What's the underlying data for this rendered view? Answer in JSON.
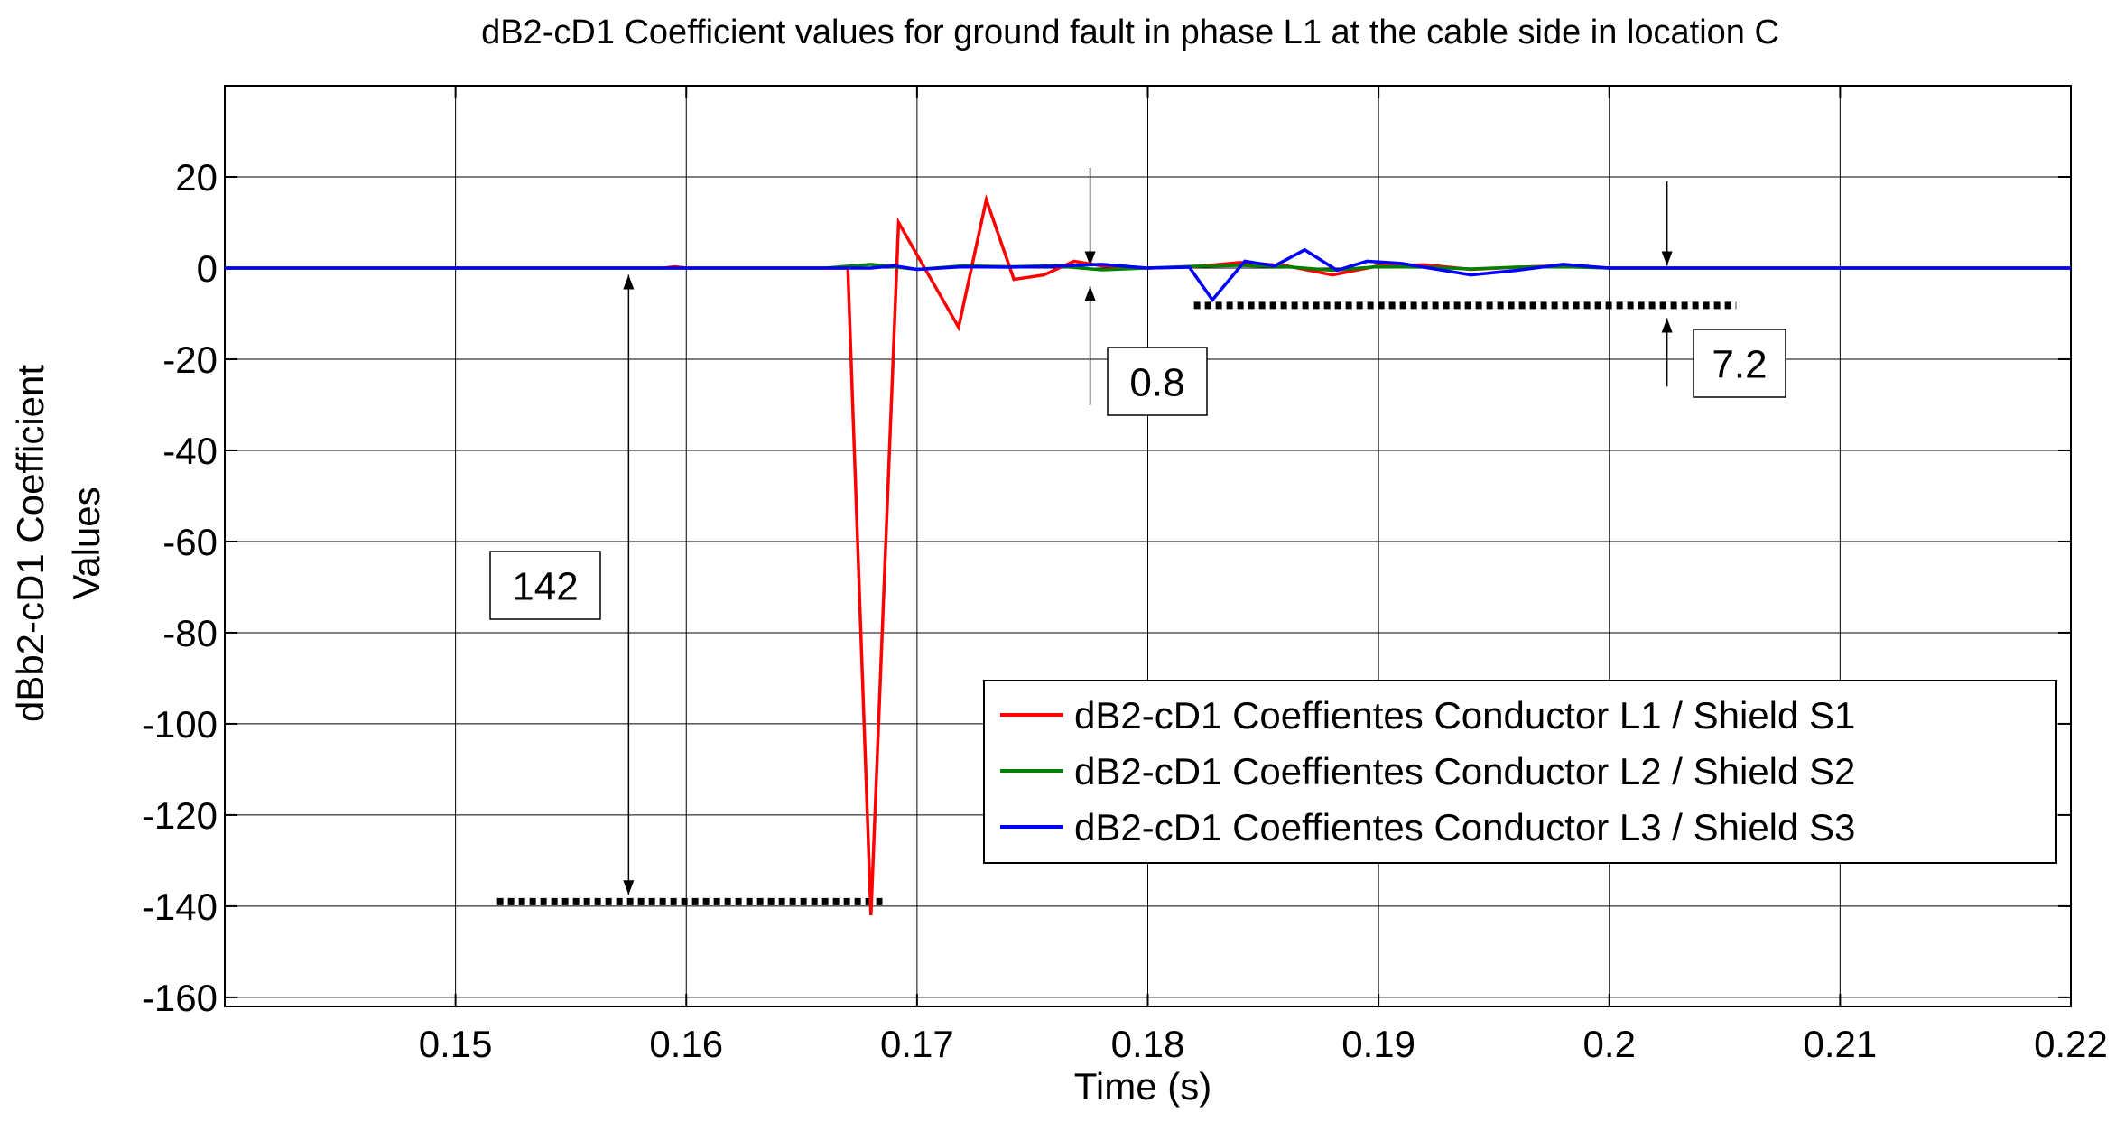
{
  "chart_data": {
    "type": "line",
    "title": "dB2-cD1 Coefficient values for ground fault in phase L1 at the cable side in location C",
    "xlabel": "Time (s)",
    "ylabel_lines": [
      "dBb2-cD1 Coefficient",
      "Values"
    ],
    "xlim": [
      0.14,
      0.22
    ],
    "ylim": [
      -162,
      40
    ],
    "xticks": [
      0.15,
      0.16,
      0.17,
      0.18,
      0.19,
      0.2,
      0.21,
      0.22
    ],
    "xtick_labels": [
      "0.15",
      "0.16",
      "0.17",
      "0.18",
      "0.19",
      "0.2",
      "0.21",
      "0.22"
    ],
    "yticks": [
      20,
      0,
      -20,
      -40,
      -60,
      -80,
      -100,
      -120,
      -140,
      -160
    ],
    "ytick_labels": [
      "20",
      "0",
      "-20",
      "-40",
      "-60",
      "-80",
      "-100",
      "-120",
      "-140",
      "-160"
    ],
    "grid": true,
    "legend_position": "lower-right",
    "series": [
      {
        "name": "dB2-cD1 Coeffientes Conductor L1 / Shield S1",
        "color": "#ff0000",
        "x": [
          0.14,
          0.159,
          0.1595,
          0.16,
          0.167,
          0.168,
          0.1692,
          0.1718,
          0.173,
          0.1742,
          0.1755,
          0.1768,
          0.178,
          0.18,
          0.182,
          0.184,
          0.186,
          0.188,
          0.19,
          0.192,
          0.194,
          0.196,
          0.198,
          0.2,
          0.22
        ],
        "y": [
          0,
          0,
          0.3,
          0,
          0,
          -142,
          10,
          -13,
          15,
          -2.5,
          -1.5,
          1.5,
          0.5,
          0,
          0.3,
          1.2,
          0.5,
          -1.5,
          0.5,
          0.7,
          -0.3,
          0.2,
          0.5,
          0,
          0
        ]
      },
      {
        "name": "dB2-cD1 Coeffientes Conductor L2 / Shield S2",
        "color": "#008000",
        "x": [
          0.14,
          0.166,
          0.168,
          0.17,
          0.172,
          0.174,
          0.176,
          0.178,
          0.18,
          0.182,
          0.184,
          0.186,
          0.188,
          0.19,
          0.192,
          0.194,
          0.196,
          0.198,
          0.2,
          0.22
        ],
        "y": [
          0,
          0,
          0.8,
          -0.3,
          0.5,
          0.3,
          0.5,
          -0.4,
          0,
          0.4,
          0.6,
          0.3,
          -0.5,
          0.3,
          0.2,
          -0.2,
          0.2,
          0.3,
          0,
          0
        ]
      },
      {
        "name": "dB2-cD1 Coeffientes Conductor L3 / Shield S3",
        "color": "#0000ff",
        "x": [
          0.14,
          0.168,
          0.169,
          0.17,
          0.172,
          0.174,
          0.176,
          0.178,
          0.18,
          0.1818,
          0.1828,
          0.1842,
          0.1855,
          0.1868,
          0.1882,
          0.1895,
          0.191,
          0.194,
          0.196,
          0.198,
          0.2,
          0.22
        ],
        "y": [
          0,
          0,
          0.5,
          -0.3,
          0.3,
          0.2,
          0.4,
          0.8,
          0,
          0.2,
          -7,
          1.5,
          0.5,
          4,
          -0.5,
          1.5,
          1,
          -1.5,
          -0.5,
          0.8,
          0,
          0
        ]
      }
    ],
    "annotations": [
      {
        "label": "142",
        "value": 142
      },
      {
        "label": "0.8",
        "value": 0.8
      },
      {
        "label": "7.2",
        "value": 7.2
      }
    ]
  }
}
